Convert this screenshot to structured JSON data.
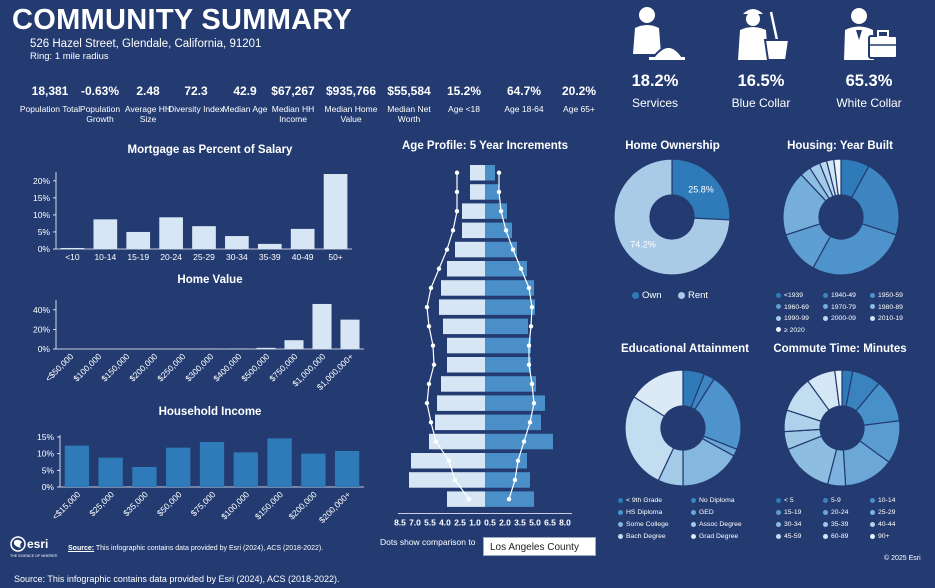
{
  "header": {
    "title": "COMMUNITY SUMMARY",
    "address": "526 Hazel Street, Glendale, California, 91201",
    "ring": "Ring: 1 mile radius"
  },
  "stats": [
    {
      "value": "18,381",
      "label": "Population Total"
    },
    {
      "value": "-0.63%",
      "label": "Population Growth"
    },
    {
      "value": "2.48",
      "label": "Average HH Size"
    },
    {
      "value": "72.3",
      "label": "Diversity Index"
    },
    {
      "value": "42.9",
      "label": "Median Age"
    },
    {
      "value": "$67,267",
      "label": "Median HH Income"
    },
    {
      "value": "$935,766",
      "label": "Median Home Value"
    },
    {
      "value": "$55,584",
      "label": "Median Net Worth"
    },
    {
      "value": "15.2%",
      "label": "Age <18"
    },
    {
      "value": "64.7%",
      "label": "Age 18-64"
    },
    {
      "value": "20.2%",
      "label": "Age 65+"
    }
  ],
  "occupations": [
    {
      "pct": "18.2%",
      "label": "Services",
      "icon": "services-worker-icon"
    },
    {
      "pct": "16.5%",
      "label": "Blue Collar",
      "icon": "blue-collar-worker-icon"
    },
    {
      "pct": "65.3%",
      "label": "White Collar",
      "icon": "white-collar-worker-icon"
    }
  ],
  "colors": {
    "background": "#233b71",
    "bar": "#d6e6f5",
    "bar_mid": "#4b8fc9",
    "bar_dark": "#2f7ab8"
  },
  "chart_data": [
    {
      "id": "mortgage",
      "type": "bar",
      "title": "Mortgage as Percent of Salary",
      "categories": [
        "<10",
        "10-14",
        "15-19",
        "20-24",
        "25-29",
        "30-34",
        "35-39",
        "40-49",
        "50+"
      ],
      "values": [
        0.3,
        8.7,
        5.0,
        9.3,
        6.7,
        3.8,
        1.5,
        5.9,
        22.0
      ],
      "yticks": [
        "0%",
        "5%",
        "10%",
        "15%",
        "20%"
      ],
      "ylim": [
        0,
        22
      ]
    },
    {
      "id": "home_value",
      "type": "bar",
      "title": "Home Value",
      "categories": [
        "<$50,000",
        "$100,000",
        "$150,000",
        "$200,000",
        "$250,000",
        "$300,000",
        "$400,000",
        "$500,000",
        "$750,000",
        "$1,000,000",
        "$1,000,000+"
      ],
      "values": [
        0,
        0,
        0,
        0,
        0,
        0.3,
        0.4,
        1.2,
        9.0,
        46.0,
        30.0
      ],
      "yticks": [
        "0%",
        "20%",
        "40%"
      ],
      "ylim": [
        0,
        48
      ]
    },
    {
      "id": "household_income",
      "type": "bar",
      "title": "Household Income",
      "categories": [
        "<$15,000",
        "$25,000",
        "$35,000",
        "$50,000",
        "$75,000",
        "$100,000",
        "$150,000",
        "$200,000",
        "$200,000+"
      ],
      "values": [
        12.4,
        8.8,
        6.0,
        11.8,
        13.5,
        10.4,
        14.6,
        10.0,
        10.8
      ],
      "yticks": [
        "0%",
        "5%",
        "10%",
        "15%"
      ],
      "ylim": [
        0,
        15
      ]
    },
    {
      "id": "age_profile",
      "type": "bar",
      "title": "Age Profile: 5 Year Increments",
      "rows": 18,
      "left_values": [
        1.5,
        1.5,
        2.3,
        2.3,
        3.0,
        3.8,
        4.4,
        4.6,
        4.2,
        3.8,
        3.8,
        4.4,
        4.8,
        5.0,
        5.6,
        7.4,
        7.6,
        3.8
      ],
      "right_values": [
        1.0,
        1.4,
        2.2,
        2.7,
        3.2,
        4.2,
        4.9,
        5.0,
        4.3,
        4.6,
        4.6,
        5.1,
        6.0,
        5.6,
        6.8,
        4.2,
        4.5,
        4.9
      ],
      "compare_left": [
        2.8,
        2.8,
        2.8,
        3.2,
        3.8,
        4.6,
        5.4,
        5.8,
        5.6,
        5.2,
        5.1,
        5.6,
        5.8,
        5.4,
        4.9,
        3.6,
        3.0,
        1.6
      ],
      "compare_right": [
        1.4,
        1.4,
        1.6,
        2.1,
        2.8,
        3.6,
        4.4,
        4.7,
        4.6,
        4.4,
        4.4,
        4.7,
        4.9,
        4.5,
        3.9,
        3.3,
        3.0,
        2.4
      ],
      "xticks_left": [
        "8.5",
        "7.0",
        "5.5",
        "4.0",
        "2.5",
        "1.0"
      ],
      "xticks_right": [
        "0.5",
        "2.0",
        "3.5",
        "5.0",
        "6.5",
        "8.0"
      ]
    },
    {
      "id": "home_ownership",
      "type": "pie",
      "title": "Home Ownership",
      "labels": [
        "Own",
        "Rent"
      ],
      "values": [
        25.8,
        74.2
      ],
      "data_labels": [
        "25.8%",
        "74.2%"
      ],
      "colors": [
        "#2f7ab8",
        "#a9cbe7"
      ]
    },
    {
      "id": "housing_year_built",
      "type": "pie",
      "title": "Housing: Year Built",
      "labels": [
        "<1939",
        "1940-49",
        "1950-59",
        "1960-69",
        "1970-79",
        "1980-89",
        "1990-99",
        "2000-09",
        "2010-19",
        "≥ 2020"
      ],
      "values": [
        8,
        22,
        28,
        12,
        18,
        3,
        3,
        2,
        2,
        2
      ],
      "colors": [
        "#2f7ab8",
        "#3d86c2",
        "#4f93cc",
        "#5e9ed2",
        "#76aedb",
        "#8ebde2",
        "#a3cbe8",
        "#bad8ee",
        "#d2e5f4",
        "#ecf4fb"
      ]
    },
    {
      "id": "educational_attainment",
      "type": "pie",
      "title": "Educational Attainment",
      "labels": [
        "< 9th Grade",
        "No Diploma",
        "HS Diploma",
        "GED",
        "Some College",
        "Assoc Degree",
        "Bach Degree",
        "Grad Degree"
      ],
      "values": [
        6,
        3,
        22,
        2,
        17,
        7,
        27,
        16
      ],
      "colors": [
        "#2f7ab8",
        "#3d86c2",
        "#4f93cc",
        "#6aa6d6",
        "#86b8df",
        "#a3cbe8",
        "#c2dcf0",
        "#dceaf6"
      ]
    },
    {
      "id": "commute_time",
      "type": "pie",
      "title": "Commute Time: Minutes",
      "labels": [
        "< 5",
        "5-9",
        "10-14",
        "15-19",
        "20-24",
        "25-29",
        "30-34",
        "35-39",
        "40-44",
        "45-59",
        "60-89",
        "90+"
      ],
      "values": [
        3,
        8,
        12,
        12,
        14,
        5,
        15,
        5,
        6,
        10,
        8,
        2
      ],
      "colors": [
        "#2f7ab8",
        "#3a83bf",
        "#4890c9",
        "#5a9bd0",
        "#6ca8d7",
        "#7db2dc",
        "#8ebde2",
        "#9ec7e6",
        "#afd1eb",
        "#c2dcf0",
        "#d5e7f5",
        "#e8f2fa"
      ]
    }
  ],
  "age_compare": {
    "label": "Dots show comparison to",
    "value": "Los Angeles County"
  },
  "footer": {
    "source_label": "Source:",
    "source_text": "This infographic contains data provided by Esri (2024), ACS (2018-2022).",
    "bottom_source": "Source: This infographic contains data provided by Esri (2024), ACS (2018-2022).",
    "copyright": "© 2025 Esri",
    "logo_text": "esri",
    "logo_tagline": "THE SCIENCE OF WHERE®"
  }
}
